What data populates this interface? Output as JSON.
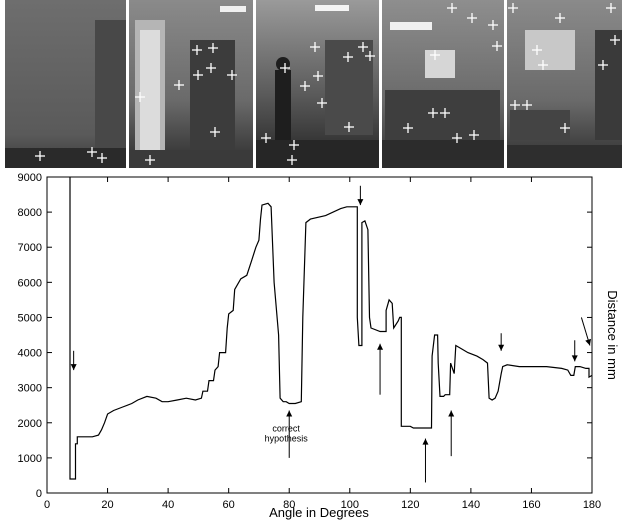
{
  "chart_data": {
    "type": "line",
    "title": "",
    "xlabel": "Angle in Degrees",
    "ylabel": "Distance in mm",
    "xlim": [
      0,
      180
    ],
    "ylim": [
      0,
      9000
    ],
    "xticks": [
      0,
      20,
      40,
      60,
      80,
      100,
      120,
      140,
      160,
      180
    ],
    "yticks": [
      0,
      1000,
      2000,
      3000,
      4000,
      5000,
      6000,
      7000,
      8000,
      9000
    ],
    "grid": false,
    "series": [
      {
        "name": "",
        "color": "#000000",
        "points": [
          [
            7.6,
            9000
          ],
          [
            7.6,
            400
          ],
          [
            9.4,
            400
          ],
          [
            9.4,
            1400
          ],
          [
            10,
            1400
          ],
          [
            10,
            1600
          ],
          [
            15,
            1600
          ],
          [
            17,
            1650
          ],
          [
            18,
            1800
          ],
          [
            19,
            2000
          ],
          [
            20,
            2250
          ],
          [
            22,
            2350
          ],
          [
            25,
            2450
          ],
          [
            28,
            2550
          ],
          [
            30,
            2650
          ],
          [
            33,
            2750
          ],
          [
            36,
            2700
          ],
          [
            38,
            2600
          ],
          [
            40,
            2600
          ],
          [
            43,
            2650
          ],
          [
            46,
            2700
          ],
          [
            49,
            2650
          ],
          [
            51,
            2700
          ],
          [
            51.5,
            2900
          ],
          [
            53,
            2900
          ],
          [
            53.5,
            3200
          ],
          [
            55,
            3200
          ],
          [
            55.5,
            3500
          ],
          [
            56.5,
            3600
          ],
          [
            57,
            4000
          ],
          [
            59,
            4000
          ],
          [
            59.5,
            4700
          ],
          [
            60,
            5100
          ],
          [
            61.5,
            5200
          ],
          [
            62,
            5800
          ],
          [
            64,
            6100
          ],
          [
            66,
            6200
          ],
          [
            67.5,
            6600
          ],
          [
            69,
            7000
          ],
          [
            70,
            7200
          ],
          [
            70.5,
            7800
          ],
          [
            71,
            8200
          ],
          [
            73,
            8250
          ],
          [
            74,
            8150
          ],
          [
            75,
            6000
          ],
          [
            76.5,
            4500
          ],
          [
            77,
            2700
          ],
          [
            78,
            2600
          ],
          [
            79,
            2600
          ],
          [
            80,
            2550
          ],
          [
            82,
            2550
          ],
          [
            84,
            2600
          ],
          [
            84.5,
            5000
          ],
          [
            85.5,
            7700
          ],
          [
            87,
            7800
          ],
          [
            92,
            7900
          ],
          [
            97,
            8100
          ],
          [
            99,
            8150
          ],
          [
            102.5,
            8150
          ],
          [
            102.5,
            5000
          ],
          [
            103,
            4200
          ],
          [
            104,
            4200
          ],
          [
            104,
            7700
          ],
          [
            105,
            7750
          ],
          [
            106,
            7500
          ],
          [
            106.5,
            5000
          ],
          [
            107,
            4700
          ],
          [
            110,
            4600
          ],
          [
            112,
            4600
          ],
          [
            112,
            5200
          ],
          [
            113,
            5500
          ],
          [
            114,
            5400
          ],
          [
            114.5,
            4700
          ],
          [
            116,
            4900
          ],
          [
            116.5,
            5000
          ],
          [
            117,
            5000
          ],
          [
            117,
            1900
          ],
          [
            120,
            1900
          ],
          [
            121,
            1850
          ],
          [
            127,
            1850
          ],
          [
            127.2,
            3900
          ],
          [
            128,
            4500
          ],
          [
            129,
            4500
          ],
          [
            129.2,
            3700
          ],
          [
            129.8,
            2750
          ],
          [
            131,
            2750
          ],
          [
            131.5,
            2800
          ],
          [
            133,
            2800
          ],
          [
            133.3,
            3700
          ],
          [
            134.5,
            3400
          ],
          [
            135,
            4200
          ],
          [
            137,
            4100
          ],
          [
            139,
            4000
          ],
          [
            142,
            3900
          ],
          [
            144,
            3800
          ],
          [
            145.5,
            3700
          ],
          [
            146,
            2700
          ],
          [
            147,
            2650
          ],
          [
            148,
            2700
          ],
          [
            149,
            2900
          ],
          [
            150,
            3400
          ],
          [
            150.5,
            3600
          ],
          [
            152,
            3650
          ],
          [
            156,
            3600
          ],
          [
            160,
            3600
          ],
          [
            165,
            3600
          ],
          [
            170,
            3550
          ],
          [
            172,
            3500
          ],
          [
            173,
            3350
          ],
          [
            174,
            3350
          ],
          [
            174.5,
            3600
          ],
          [
            176,
            3600
          ],
          [
            178,
            3550
          ],
          [
            179,
            3550
          ],
          [
            179,
            3300
          ],
          [
            180,
            3350
          ]
        ]
      }
    ],
    "annotations": [
      {
        "text": "correct hypothesis",
        "lines": [
          "correct",
          "hypothesis"
        ],
        "x": 79,
        "y": 1750
      }
    ],
    "arrows": [
      {
        "x": 8.8,
        "from": 4050,
        "to": 3500
      },
      {
        "x": 103.5,
        "from": 8750,
        "to": 8200
      },
      {
        "x": 80,
        "from": 1000,
        "to": 2350
      },
      {
        "x": 110,
        "from": 2800,
        "to": 4250
      },
      {
        "x": 125,
        "from": 300,
        "to": 1550
      },
      {
        "x": 133.5,
        "from": 1050,
        "to": 2350
      },
      {
        "x": 150,
        "from": 4550,
        "to": 4050
      },
      {
        "x": 174.3,
        "from": 4350,
        "to": 3750
      },
      {
        "x": 176.5,
        "y_from": 5000,
        "x_to": 179.3,
        "y_to": 4200
      }
    ]
  },
  "panorama": {
    "dividers": [
      122,
      249,
      375,
      500
    ],
    "sky_color": "#5d5d5d",
    "floor_color": "#2e2e2e"
  }
}
